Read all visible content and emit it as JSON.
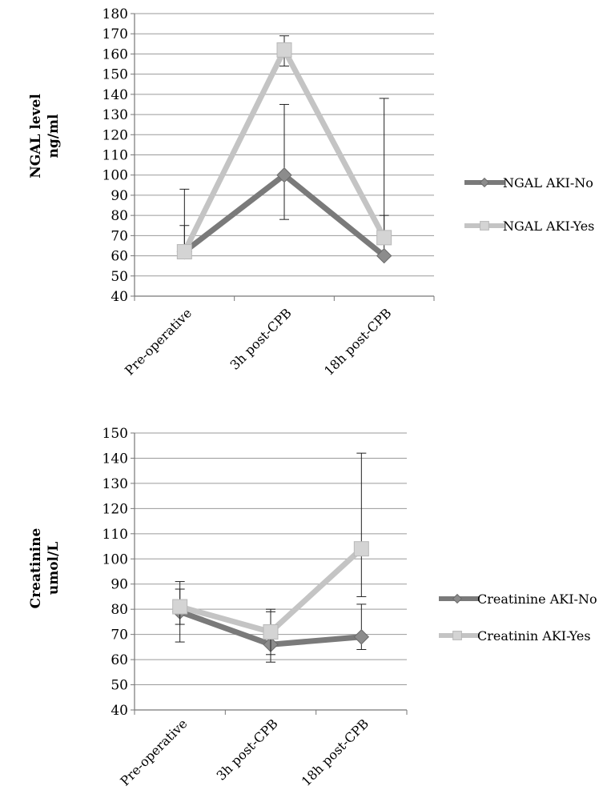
{
  "chart_data": [
    {
      "type": "line",
      "ylabel": [
        "NGAL level",
        "ng/ml"
      ],
      "ylim": [
        40,
        180
      ],
      "ystep": 10,
      "grid": true,
      "legend": "right",
      "categories": [
        "Pre-operative",
        "3h post-CPB",
        "18h post-CPB"
      ],
      "series": [
        {
          "name": "NGAL AKI-No",
          "values": [
            62,
            100,
            60
          ],
          "err_high": [
            75,
            135,
            80
          ],
          "err_low": [
            62,
            78,
            60
          ],
          "color": "#7a7a7a",
          "marker": "diamond"
        },
        {
          "name": "NGAL AKI-Yes",
          "values": [
            62,
            162,
            69
          ],
          "err_high": [
            93,
            169,
            138
          ],
          "err_low": [
            62,
            154,
            69
          ],
          "color": "#c4c4c4",
          "marker": "square"
        }
      ]
    },
    {
      "type": "line",
      "ylabel": [
        "Creatinine",
        "umol/L"
      ],
      "ylim": [
        40,
        150
      ],
      "ystep": 10,
      "grid": true,
      "legend": "right",
      "categories": [
        "Pre-operative",
        "3h post-CPB",
        "18h post-CPB"
      ],
      "series": [
        {
          "name": "Creatinine AKI-No",
          "values": [
            79,
            66,
            69
          ],
          "err_high": [
            88,
            79,
            82
          ],
          "err_low": [
            67,
            59,
            64
          ],
          "color": "#7a7a7a",
          "marker": "diamond"
        },
        {
          "name": "Creatinin AKI-Yes",
          "values": [
            81,
            71,
            104
          ],
          "err_high": [
            91,
            80,
            142
          ],
          "err_low": [
            74,
            62,
            85
          ],
          "color": "#c4c4c4",
          "marker": "square"
        }
      ]
    }
  ]
}
